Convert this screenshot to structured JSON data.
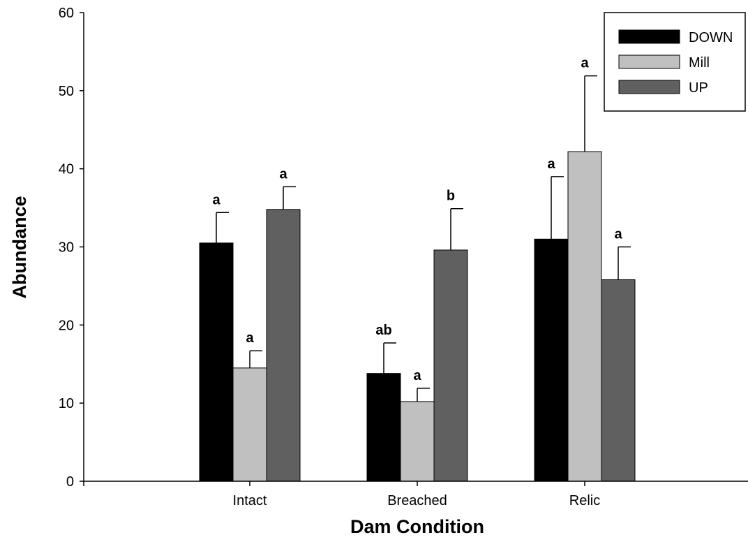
{
  "chart_data": {
    "type": "bar",
    "xlabel": "Dam Condition",
    "ylabel": "Abundance",
    "ylim": [
      0,
      60
    ],
    "yticks": [
      0,
      10,
      20,
      30,
      40,
      50,
      60
    ],
    "categories": [
      "Intact",
      "Breached",
      "Relic"
    ],
    "series": [
      {
        "name": "DOWN",
        "color": "#000000",
        "values": [
          30.5,
          13.8,
          31.0
        ],
        "errors": [
          3.9,
          3.9,
          8.0
        ],
        "significance": [
          "a",
          "ab",
          "a"
        ]
      },
      {
        "name": "Mill",
        "color": "#c0c0c0",
        "values": [
          14.5,
          10.2,
          42.2
        ],
        "errors": [
          2.2,
          1.7,
          9.7
        ],
        "significance": [
          "a",
          "a",
          "a"
        ]
      },
      {
        "name": "UP",
        "color": "#606060",
        "values": [
          34.8,
          29.6,
          25.8
        ],
        "errors": [
          2.9,
          5.3,
          4.2
        ],
        "significance": [
          "a",
          "b",
          "a"
        ]
      }
    ],
    "legend_position": "top-right",
    "grid": false
  }
}
